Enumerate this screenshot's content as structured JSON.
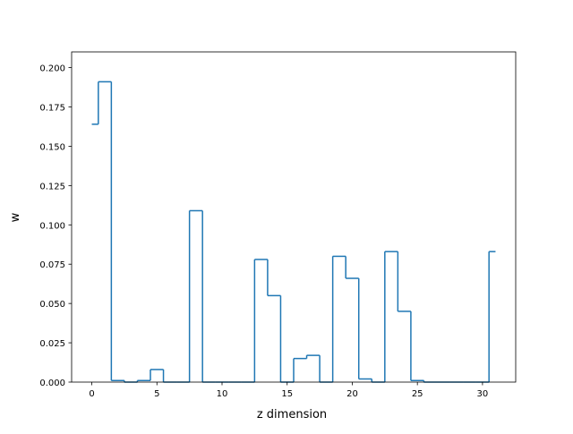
{
  "chart_data": {
    "type": "line",
    "drawstyle": "steps-mid",
    "title": "",
    "xlabel": "z dimension",
    "ylabel": "w",
    "xlim": [
      -1.55,
      32.55
    ],
    "ylim": [
      0.0,
      0.21
    ],
    "xticks": [
      0,
      5,
      10,
      15,
      20,
      25,
      30
    ],
    "yticks": [
      0.0,
      0.025,
      0.05,
      0.075,
      0.1,
      0.125,
      0.15,
      0.175,
      0.2
    ],
    "xtick_labels": [
      "0",
      "5",
      "10",
      "15",
      "20",
      "25",
      "30"
    ],
    "ytick_labels": [
      "0.000",
      "0.025",
      "0.050",
      "0.075",
      "0.100",
      "0.125",
      "0.150",
      "0.175",
      "0.200"
    ],
    "grid": false,
    "color": "#1f77b4",
    "x": [
      0,
      1,
      2,
      3,
      4,
      5,
      6,
      7,
      8,
      9,
      10,
      11,
      12,
      13,
      14,
      15,
      16,
      17,
      18,
      19,
      20,
      21,
      22,
      23,
      24,
      25,
      26,
      27,
      28,
      29,
      30,
      31
    ],
    "values": [
      0.164,
      0.191,
      0.001,
      0.0,
      0.001,
      0.008,
      0.0,
      0.0,
      0.109,
      0.0,
      0.0,
      0.0,
      0.0,
      0.078,
      0.055,
      0.0,
      0.015,
      0.017,
      0.0,
      0.08,
      0.066,
      0.002,
      0.0,
      0.083,
      0.045,
      0.001,
      0.0,
      0.0,
      0.0,
      0.0,
      0.0,
      0.083
    ]
  }
}
